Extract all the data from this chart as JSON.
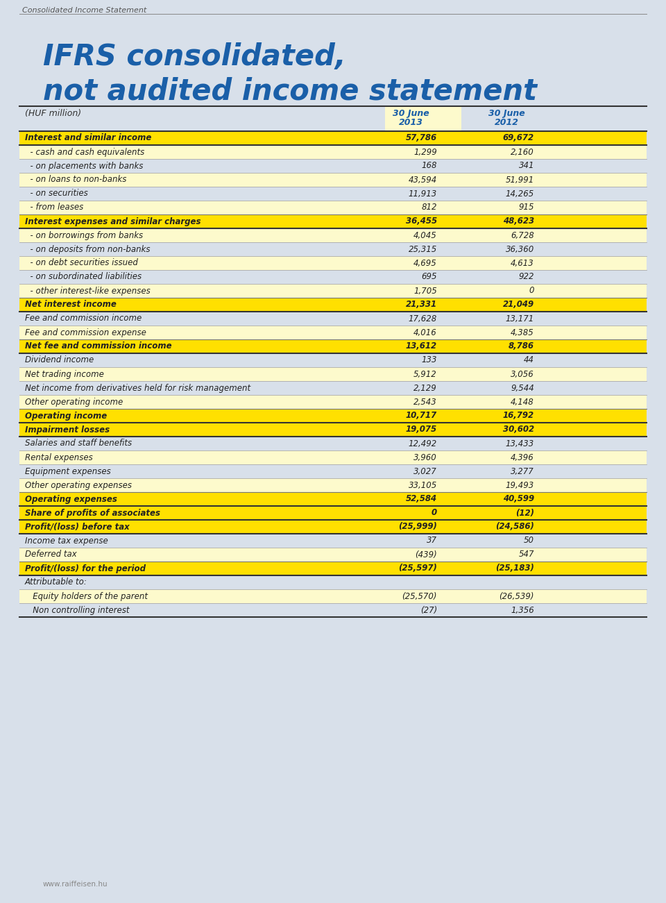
{
  "page_label": "Consolidated Income Statement",
  "title_line1": "IFRS consolidated,",
  "title_line2": "not audited income statement",
  "header_col0": "(HUF million)",
  "bg_color": "#d8e0ea",
  "title_color": "#1a5fa8",
  "yellow_bg": "#ffe000",
  "yellow_light": "#fdfacc",
  "rows": [
    {
      "label": "Interest and similar income",
      "v1": "57,786",
      "v2": "69,672",
      "style": "yellow_bold"
    },
    {
      "label": "  - cash and cash equivalents",
      "v1": "1,299",
      "v2": "2,160",
      "style": "normal_light"
    },
    {
      "label": "  - on placements with banks",
      "v1": "168",
      "v2": "341",
      "style": "normal"
    },
    {
      "label": "  - on loans to non-banks",
      "v1": "43,594",
      "v2": "51,991",
      "style": "normal_light"
    },
    {
      "label": "  - on securities",
      "v1": "11,913",
      "v2": "14,265",
      "style": "normal"
    },
    {
      "label": "  - from leases",
      "v1": "812",
      "v2": "915",
      "style": "normal_light"
    },
    {
      "label": "Interest expenses and similar charges",
      "v1": "36,455",
      "v2": "48,623",
      "style": "yellow_bold"
    },
    {
      "label": "  - on borrowings from banks",
      "v1": "4,045",
      "v2": "6,728",
      "style": "normal_light"
    },
    {
      "label": "  - on deposits from non-banks",
      "v1": "25,315",
      "v2": "36,360",
      "style": "normal"
    },
    {
      "label": "  - on debt securities issued",
      "v1": "4,695",
      "v2": "4,613",
      "style": "normal_light"
    },
    {
      "label": "  - on subordinated liabilities",
      "v1": "695",
      "v2": "922",
      "style": "normal"
    },
    {
      "label": "  - other interest-like expenses",
      "v1": "1,705",
      "v2": "0",
      "style": "normal_light"
    },
    {
      "label": "Net interest income",
      "v1": "21,331",
      "v2": "21,049",
      "style": "yellow_bold"
    },
    {
      "label": "Fee and commission income",
      "v1": "17,628",
      "v2": "13,171",
      "style": "normal"
    },
    {
      "label": "Fee and commission expense",
      "v1": "4,016",
      "v2": "4,385",
      "style": "normal_light"
    },
    {
      "label": "Net fee and commission income",
      "v1": "13,612",
      "v2": "8,786",
      "style": "yellow_bold"
    },
    {
      "label": "Dividend income",
      "v1": "133",
      "v2": "44",
      "style": "normal"
    },
    {
      "label": "Net trading income",
      "v1": "5,912",
      "v2": "3,056",
      "style": "normal_light"
    },
    {
      "label": "Net income from derivatives held for risk management",
      "v1": "2,129",
      "v2": "9,544",
      "style": "normal"
    },
    {
      "label": "Other operating income",
      "v1": "2,543",
      "v2": "4,148",
      "style": "normal_light"
    },
    {
      "label": "Operating income",
      "v1": "10,717",
      "v2": "16,792",
      "style": "yellow_bold"
    },
    {
      "label": "Impairment losses",
      "v1": "19,075",
      "v2": "30,602",
      "style": "yellow_bold"
    },
    {
      "label": "Salaries and staff benefits",
      "v1": "12,492",
      "v2": "13,433",
      "style": "normal"
    },
    {
      "label": "Rental expenses",
      "v1": "3,960",
      "v2": "4,396",
      "style": "normal_light"
    },
    {
      "label": "Equipment expenses",
      "v1": "3,027",
      "v2": "3,277",
      "style": "normal"
    },
    {
      "label": "Other operating expenses",
      "v1": "33,105",
      "v2": "19,493",
      "style": "normal_light"
    },
    {
      "label": "Operating expenses",
      "v1": "52,584",
      "v2": "40,599",
      "style": "yellow_bold"
    },
    {
      "label": "Share of profits of associates",
      "v1": "0",
      "v2": "(12)",
      "style": "yellow_bold"
    },
    {
      "label": "Profit/(loss) before tax",
      "v1": "(25,999)",
      "v2": "(24,586)",
      "style": "yellow_bold"
    },
    {
      "label": "Income tax expense",
      "v1": "37",
      "v2": "50",
      "style": "normal"
    },
    {
      "label": "Deferred tax",
      "v1": "(439)",
      "v2": "547",
      "style": "normal_light"
    },
    {
      "label": "Profit/(loss) for the period",
      "v1": "(25,597)",
      "v2": "(25,183)",
      "style": "yellow_bold"
    },
    {
      "label": "Attributable to:",
      "v1": "",
      "v2": "",
      "style": "normal"
    },
    {
      "label": "   Equity holders of the parent",
      "v1": "(25,570)",
      "v2": "(26,539)",
      "style": "normal_light"
    },
    {
      "label": "   Non controlling interest",
      "v1": "(27)",
      "v2": "1,356",
      "style": "normal"
    }
  ],
  "footer": "www.raiffeisen.hu"
}
